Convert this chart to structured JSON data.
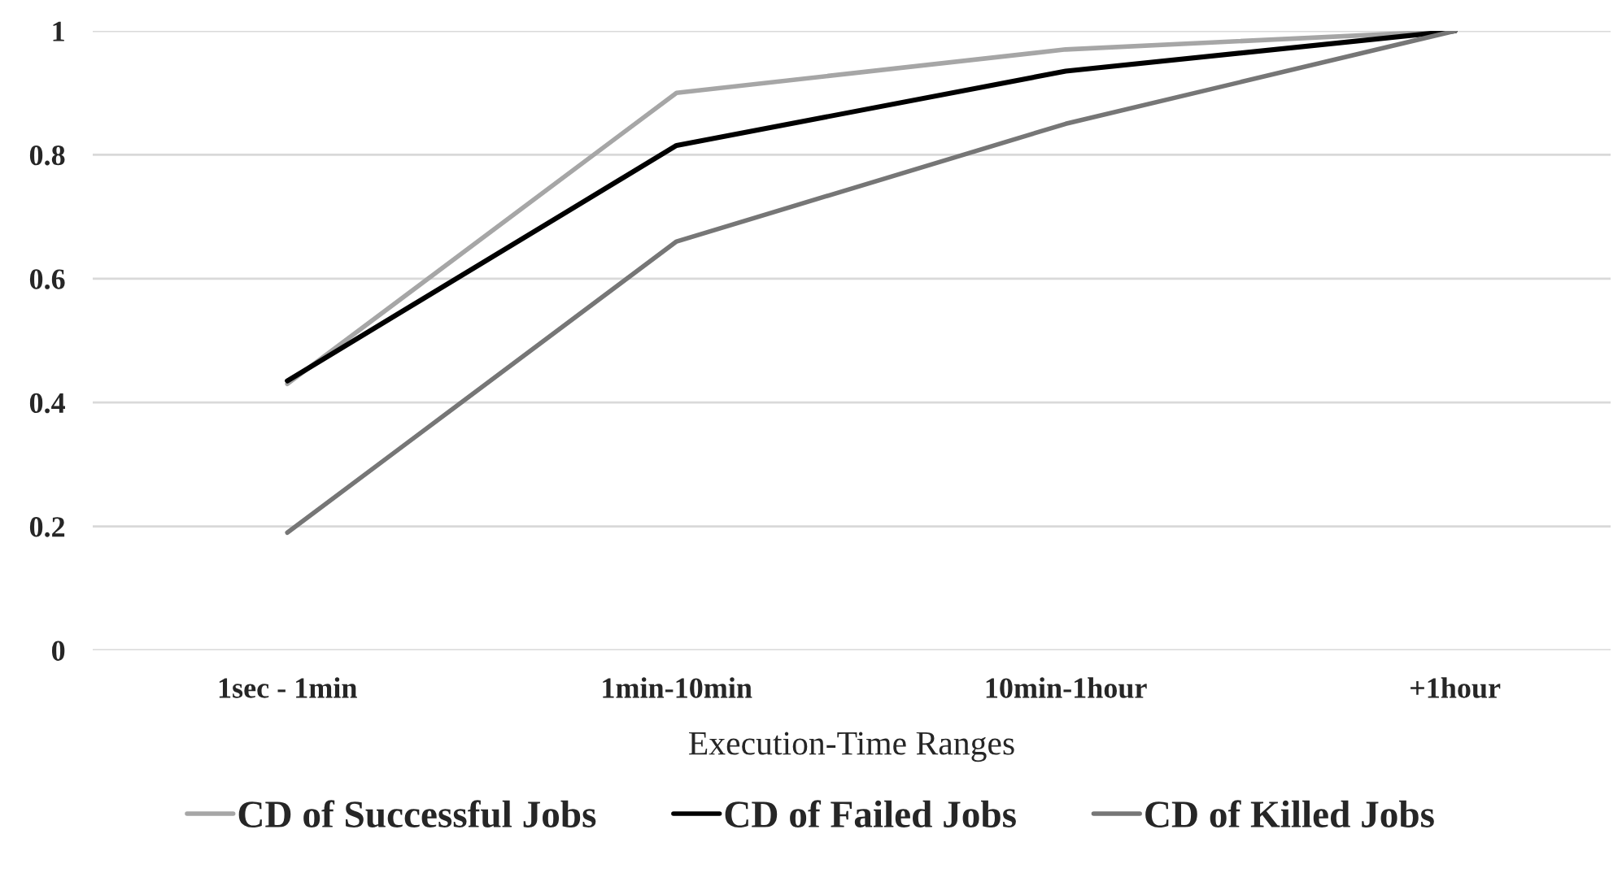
{
  "chart_data": {
    "type": "line",
    "xlabel": "Execution-Time Ranges",
    "categories": [
      "1sec - 1min",
      "1min-10min",
      "10min-1hour",
      "+1hour"
    ],
    "series": [
      {
        "name": "CD of Successful Jobs",
        "color": "#a6a6a6",
        "values": [
          0.43,
          0.9,
          0.97,
          1.0
        ]
      },
      {
        "name": "CD of Failed Jobs",
        "color": "#000000",
        "values": [
          0.435,
          0.815,
          0.935,
          1.0
        ]
      },
      {
        "name": "CD of Killed Jobs",
        "color": "#767676",
        "values": [
          0.19,
          0.66,
          0.85,
          1.0
        ]
      }
    ],
    "ylim": [
      0,
      1
    ],
    "yticks": [
      0,
      0.2,
      0.4,
      0.6,
      0.8,
      1
    ],
    "grid": "y",
    "legend": "bottom",
    "marker": "none",
    "line_style": "solid"
  }
}
